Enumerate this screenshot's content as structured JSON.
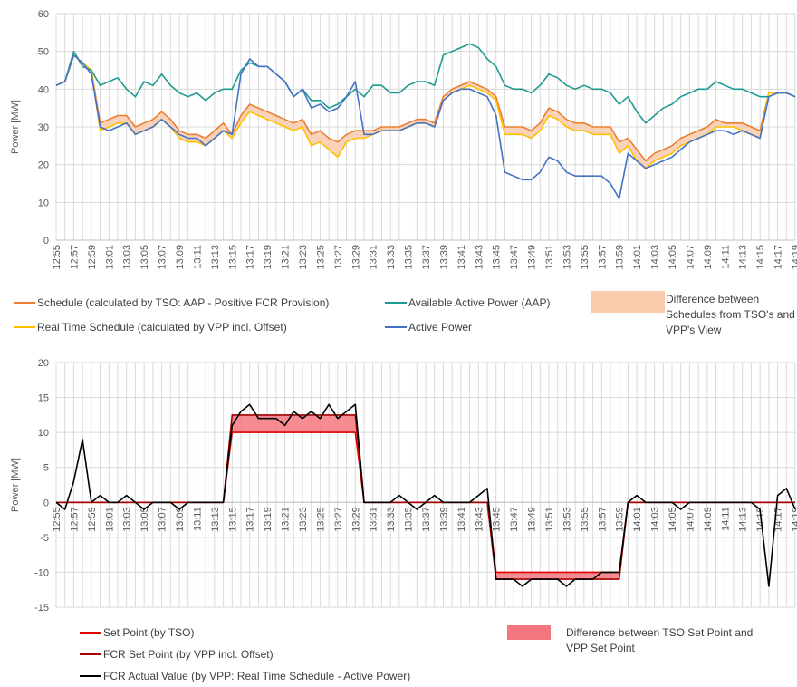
{
  "chart_data": [
    {
      "type": "line",
      "ylabel": "Power [MW]",
      "categories": [
        "12:55",
        null,
        "12:57",
        null,
        "12:59",
        null,
        "13:01",
        null,
        "13:03",
        null,
        "13:05",
        null,
        "13:07",
        null,
        "13:09",
        null,
        "13:11",
        null,
        "13:13",
        null,
        "13:15",
        null,
        "13:17",
        null,
        "13:19",
        null,
        "13:21",
        null,
        "13:23",
        null,
        "13:25",
        null,
        "13:27",
        null,
        "13:29",
        null,
        "13:31",
        null,
        "13:33",
        null,
        "13:35",
        null,
        "13:37",
        null,
        "13:39",
        null,
        "13:41",
        null,
        "13:43",
        null,
        "13:45",
        null,
        "13:47",
        null,
        "13:49",
        null,
        "13:51",
        null,
        "13:53",
        null,
        "13:55",
        null,
        "13:57",
        null,
        "13:59",
        null,
        "14:01",
        null,
        "14:03",
        null,
        "14:05",
        null,
        "14:07",
        null,
        "14:09",
        null,
        "14:11",
        null,
        "14:13",
        null,
        "14:15",
        null,
        "14:17",
        null,
        "14:19"
      ],
      "ylim": [
        0,
        60
      ],
      "yticks": [
        0,
        10,
        20,
        30,
        40,
        50,
        60
      ],
      "grid": true,
      "series": [
        {
          "name": "Schedule (calculated by TSO: AAP - Positive FCR Provision)",
          "color": "#ed7d31",
          "values": [
            41,
            42,
            49,
            47,
            45,
            31,
            32,
            33,
            33,
            30,
            31,
            32,
            34,
            32,
            29,
            28,
            28,
            27,
            29,
            31,
            28,
            33,
            36,
            35,
            34,
            33,
            32,
            31,
            32,
            28,
            29,
            27,
            26,
            28,
            29,
            29,
            29,
            30,
            30,
            30,
            31,
            32,
            32,
            31,
            38,
            40,
            41,
            42,
            41,
            40,
            38,
            30,
            30,
            30,
            29,
            31,
            35,
            34,
            32,
            31,
            31,
            30,
            30,
            30,
            26,
            27,
            24,
            21,
            23,
            24,
            25,
            27,
            28,
            29,
            30,
            32,
            31,
            31,
            31,
            30,
            29,
            39,
            39,
            39,
            38
          ]
        },
        {
          "name": "Real Time Schedule (calculated by VPP incl. Offset)",
          "color": "#ffc000",
          "values": [
            41,
            42,
            49,
            47,
            45,
            29,
            30,
            31,
            31,
            28,
            29,
            30,
            32,
            30,
            27,
            26,
            26,
            25,
            27,
            29,
            27,
            31,
            34,
            33,
            32,
            31,
            30,
            29,
            30,
            25,
            26,
            24,
            22,
            26,
            27,
            27,
            28,
            29,
            29,
            29,
            30,
            31,
            31,
            30,
            37,
            39,
            40,
            41,
            40,
            39,
            37,
            28,
            28,
            28,
            27,
            29,
            33,
            32,
            30,
            29,
            29,
            28,
            28,
            28,
            23,
            25,
            21,
            19,
            21,
            22,
            23,
            25,
            26,
            27,
            28,
            30,
            30,
            30,
            29,
            28,
            27,
            39,
            39,
            39,
            38
          ]
        },
        {
          "name": "Available Active Power (AAP)",
          "color": "#1f9a92",
          "values": [
            41,
            42,
            50,
            46,
            45,
            41,
            42,
            43,
            40,
            38,
            42,
            41,
            44,
            41,
            39,
            38,
            39,
            37,
            39,
            40,
            40,
            45,
            47,
            46,
            46,
            44,
            42,
            38,
            40,
            37,
            37,
            35,
            36,
            38,
            40,
            38,
            41,
            41,
            39,
            39,
            41,
            42,
            42,
            41,
            49,
            50,
            51,
            52,
            51,
            48,
            46,
            41,
            40,
            40,
            39,
            41,
            44,
            43,
            41,
            40,
            41,
            40,
            40,
            39,
            36,
            38,
            34,
            31,
            33,
            35,
            36,
            38,
            39,
            40,
            40,
            42,
            41,
            40,
            40,
            39,
            38,
            38,
            39,
            39,
            38
          ]
        },
        {
          "name": "Active Power",
          "color": "#4472c4",
          "values": [
            41,
            42,
            49,
            47,
            44,
            30,
            29,
            30,
            31,
            28,
            29,
            30,
            32,
            30,
            28,
            27,
            27,
            25,
            27,
            29,
            28,
            44,
            48,
            46,
            46,
            44,
            42,
            38,
            40,
            35,
            36,
            34,
            35,
            38,
            42,
            28,
            28,
            29,
            29,
            29,
            30,
            31,
            31,
            30,
            37,
            39,
            40,
            40,
            39,
            38,
            33,
            18,
            17,
            16,
            16,
            18,
            22,
            21,
            18,
            17,
            17,
            17,
            17,
            15,
            11,
            23,
            21,
            19,
            20,
            21,
            22,
            24,
            26,
            27,
            28,
            29,
            29,
            28,
            29,
            28,
            27,
            38,
            39,
            39,
            38
          ]
        }
      ],
      "fill": {
        "label": "Difference between Schedules from TSO's and VPP's View",
        "color": "#f8cbad",
        "between": [
          0,
          1
        ]
      }
    },
    {
      "type": "line",
      "ylabel": "Power [MW]",
      "categories": [
        "12:55",
        null,
        "12:57",
        null,
        "12:59",
        null,
        "13:01",
        null,
        "13:03",
        null,
        "13:05",
        null,
        "13:07",
        null,
        "13:09",
        null,
        "13:11",
        null,
        "13:13",
        null,
        "13:15",
        null,
        "13:17",
        null,
        "13:19",
        null,
        "13:21",
        null,
        "13:23",
        null,
        "13:25",
        null,
        "13:27",
        null,
        "13:29",
        null,
        "13:31",
        null,
        "13:33",
        null,
        "13:35",
        null,
        "13:37",
        null,
        "13:39",
        null,
        "13:41",
        null,
        "13:43",
        null,
        "13:45",
        null,
        "13:47",
        null,
        "13:49",
        null,
        "13:51",
        null,
        "13:53",
        null,
        "13:55",
        null,
        "13:57",
        null,
        "13:59",
        null,
        "14:01",
        null,
        "14:03",
        null,
        "14:05",
        null,
        "14:07",
        null,
        "14:09",
        null,
        "14:11",
        null,
        "14:13",
        null,
        "14:15",
        null,
        "14:17",
        null,
        "14:19"
      ],
      "ylim": [
        -15,
        20
      ],
      "yticks": [
        -15,
        -10,
        -5,
        0,
        5,
        10,
        15,
        20
      ],
      "grid": true,
      "series": [
        {
          "name": "Set Point (by TSO)",
          "color": "#e00000",
          "values": [
            0,
            0,
            0,
            0,
            0,
            0,
            0,
            0,
            0,
            0,
            0,
            0,
            0,
            0,
            0,
            0,
            0,
            0,
            0,
            0,
            10,
            10,
            10,
            10,
            10,
            10,
            10,
            10,
            10,
            10,
            10,
            10,
            10,
            10,
            10,
            0,
            0,
            0,
            0,
            0,
            0,
            0,
            0,
            0,
            0,
            0,
            0,
            0,
            0,
            0,
            -10,
            -10,
            -10,
            -10,
            -10,
            -10,
            -10,
            -10,
            -10,
            -10,
            -10,
            -10,
            -10,
            -10,
            -10,
            0,
            0,
            0,
            0,
            0,
            0,
            0,
            0,
            0,
            0,
            0,
            0,
            0,
            0,
            0,
            0,
            0,
            0,
            0,
            0
          ]
        },
        {
          "name": "FCR Set Point (by VPP incl. Offset)",
          "color": "#a50000",
          "values": [
            0,
            0,
            0,
            0,
            0,
            0,
            0,
            0,
            0,
            0,
            0,
            0,
            0,
            0,
            0,
            0,
            0,
            0,
            0,
            0,
            12.5,
            12.5,
            12.5,
            12.5,
            12.5,
            12.5,
            12.5,
            12.5,
            12.5,
            12.5,
            12.5,
            12.5,
            12.5,
            12.5,
            12.5,
            0,
            0,
            0,
            0,
            0,
            0,
            0,
            0,
            0,
            0,
            0,
            0,
            0,
            0,
            0,
            -11,
            -11,
            -11,
            -11,
            -11,
            -11,
            -11,
            -11,
            -11,
            -11,
            -11,
            -11,
            -11,
            -11,
            -11,
            0,
            0,
            0,
            0,
            0,
            0,
            0,
            0,
            0,
            0,
            0,
            0,
            0,
            0,
            0,
            0,
            0,
            0,
            0,
            0
          ]
        },
        {
          "name": "FCR Actual Value (by VPP: Real Time Schedule - Active Power)",
          "color": "#000000",
          "values": [
            0,
            -1,
            3,
            9,
            0,
            1,
            0,
            0,
            1,
            0,
            -1,
            0,
            0,
            0,
            -1,
            0,
            0,
            0,
            0,
            0,
            11,
            13,
            14,
            12,
            12,
            12,
            11,
            13,
            12,
            13,
            12,
            14,
            12,
            13,
            14,
            0,
            0,
            0,
            0,
            1,
            0,
            -1,
            0,
            1,
            0,
            0,
            0,
            0,
            1,
            2,
            -11,
            -11,
            -11,
            -12,
            -11,
            -11,
            -11,
            -11,
            -12,
            -11,
            -11,
            -11,
            -10,
            -10,
            -10,
            0,
            1,
            0,
            0,
            0,
            0,
            -1,
            0,
            0,
            0,
            0,
            0,
            0,
            0,
            0,
            -1,
            -12,
            1,
            2,
            -1
          ]
        }
      ],
      "fill": {
        "label": "Difference between TSO Set Point and VPP Set Point",
        "color": "#f4777f",
        "between": [
          1,
          0
        ]
      }
    }
  ]
}
